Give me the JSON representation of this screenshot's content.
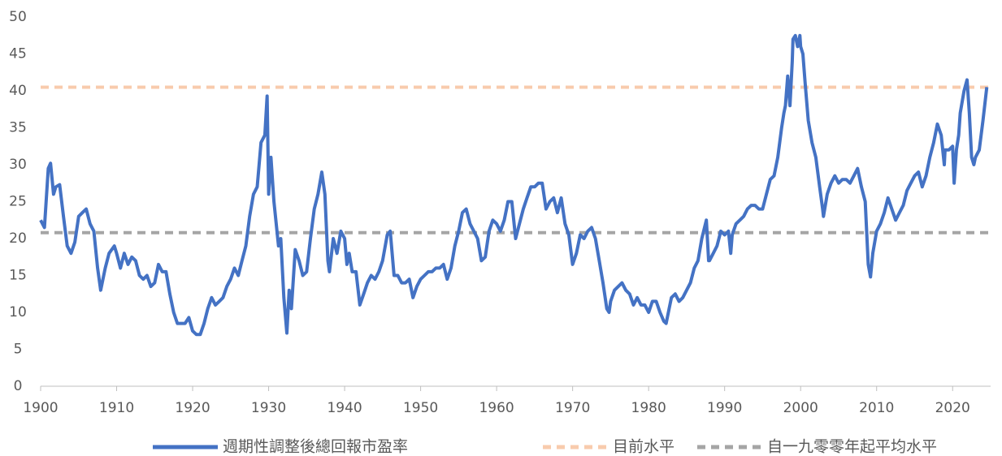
{
  "chart_data": {
    "type": "line",
    "x": [
      1900,
      1900.5,
      1901,
      1901.3,
      1901.7,
      1902,
      1902.5,
      1903,
      1903.5,
      1904,
      1904.5,
      1905,
      1905.5,
      1906,
      1906.5,
      1907,
      1907.5,
      1907.9,
      1908.5,
      1909,
      1909.7,
      1910,
      1910.5,
      1911,
      1911.5,
      1912,
      1912.5,
      1913,
      1913.5,
      1914,
      1914.5,
      1915,
      1915.5,
      1916,
      1916.5,
      1917,
      1917.5,
      1918,
      1918.5,
      1919,
      1919.5,
      1920,
      1920.5,
      1921,
      1921.5,
      1922,
      1922.5,
      1923,
      1923.5,
      1924,
      1924.5,
      1925,
      1925.5,
      1926,
      1926.5,
      1927,
      1927.5,
      1928,
      1928.5,
      1929,
      1929.5,
      1929.8,
      1930,
      1930.3,
      1930.7,
      1931,
      1931.3,
      1931.6,
      1932,
      1932.4,
      1932.7,
      1933,
      1933.5,
      1934,
      1934.5,
      1935,
      1935.5,
      1936,
      1936.5,
      1937,
      1937.4,
      1937.8,
      1938,
      1938.5,
      1939,
      1939.5,
      1940,
      1940.3,
      1940.6,
      1941,
      1941.5,
      1942,
      1942.5,
      1943,
      1943.5,
      1944,
      1944.5,
      1945,
      1945.6,
      1946,
      1946.5,
      1947,
      1947.5,
      1948,
      1948.5,
      1949,
      1949.5,
      1950,
      1950.5,
      1951,
      1951.5,
      1952,
      1952.5,
      1953,
      1953.5,
      1954,
      1954.5,
      1955,
      1955.5,
      1956,
      1956.5,
      1957,
      1957.5,
      1958,
      1958.5,
      1959,
      1959.5,
      1960,
      1960.5,
      1961,
      1961.5,
      1962,
      1962.5,
      1963,
      1963.5,
      1964,
      1964.5,
      1965,
      1965.5,
      1966,
      1966.5,
      1967,
      1967.5,
      1968,
      1968.5,
      1969,
      1969.5,
      1970,
      1970.5,
      1971,
      1971.5,
      1972,
      1972.5,
      1973,
      1973.5,
      1974,
      1974.5,
      1974.8,
      1975,
      1975.5,
      1976,
      1976.5,
      1977,
      1977.5,
      1978,
      1978.5,
      1979,
      1979.5,
      1980,
      1980.5,
      1981,
      1981.5,
      1982,
      1982.3,
      1982.7,
      1983,
      1983.5,
      1984,
      1984.5,
      1985,
      1985.5,
      1986,
      1986.5,
      1987,
      1987.6,
      1987.9,
      1988,
      1988.5,
      1989,
      1989.5,
      1990,
      1990.5,
      1990.8,
      1991,
      1991.5,
      1992,
      1992.5,
      1993,
      1993.5,
      1994,
      1994.5,
      1995,
      1995.5,
      1996,
      1996.5,
      1997,
      1997.5,
      1997.8,
      1998,
      1998.3,
      1998.6,
      1998.9,
      1999,
      1999.3,
      1999.6,
      1999.9,
      2000,
      2000.3,
      2000.6,
      2001,
      2001.5,
      2002,
      2002.5,
      2002.9,
      2003,
      2003.5,
      2004,
      2004.5,
      2005,
      2005.5,
      2006,
      2006.5,
      2007,
      2007.5,
      2008,
      2008.5,
      2008.9,
      2009.2,
      2009.5,
      2010,
      2010.5,
      2011,
      2011.5,
      2012,
      2012.5,
      2013,
      2013.5,
      2014,
      2014.5,
      2015,
      2015.5,
      2016,
      2016.5,
      2017,
      2017.5,
      2018,
      2018.5,
      2018.9,
      2019,
      2019.5,
      2020,
      2020.2,
      2020.5,
      2020.8,
      2021,
      2021.5,
      2021.9,
      2022.2,
      2022.5,
      2022.8,
      2023,
      2023.5,
      2024,
      2024.5
    ],
    "series": [
      {
        "name": "週期性調整後總回報市盈率",
        "color": "#4472c4",
        "values": [
          22.5,
          21.5,
          29.5,
          30.2,
          26,
          27,
          27.3,
          23,
          19,
          18,
          19.5,
          23,
          23.5,
          24,
          22,
          21,
          16,
          13,
          16,
          18,
          19,
          18,
          16,
          18,
          16.5,
          17.5,
          17,
          15,
          14.5,
          15,
          13.5,
          14,
          16.5,
          15.5,
          15.5,
          12.5,
          10,
          8.5,
          8.5,
          8.5,
          9.3,
          7.5,
          7,
          7,
          8.5,
          10.5,
          12,
          11,
          11.5,
          12,
          13.5,
          14.5,
          16,
          15,
          17,
          19,
          23,
          26,
          27,
          33,
          34,
          39.3,
          26,
          31,
          25,
          22,
          19,
          20,
          12,
          7.2,
          13,
          10.5,
          18.5,
          17,
          15,
          15.5,
          20,
          24,
          26,
          29,
          26,
          17,
          15.5,
          20,
          18,
          21,
          20,
          16.5,
          18,
          15.5,
          15.5,
          11,
          12.5,
          14,
          15,
          14.5,
          15.5,
          17,
          20.5,
          21,
          15,
          15,
          14,
          14,
          14.5,
          12,
          13.5,
          14.5,
          15,
          15.5,
          15.5,
          16,
          16,
          16.5,
          14.5,
          16,
          19,
          21,
          23.5,
          24,
          22,
          21,
          20,
          17,
          17.5,
          21,
          22.5,
          22,
          21,
          22.5,
          25,
          25,
          20,
          22,
          24,
          25.5,
          27,
          27,
          27.5,
          27.5,
          24,
          25,
          25.5,
          23.5,
          25.5,
          22,
          20.5,
          16.5,
          18,
          20.5,
          20,
          21,
          21.5,
          20,
          17,
          14,
          10.5,
          10,
          11.5,
          13,
          13.5,
          14,
          13,
          12.5,
          11,
          12,
          11,
          11,
          10,
          11.5,
          11.5,
          10,
          8.8,
          8.5,
          10.5,
          12,
          12.5,
          11.5,
          12,
          13,
          14,
          16,
          17,
          20,
          22.5,
          17,
          17,
          18,
          19,
          21,
          20.5,
          21,
          18,
          20.5,
          22,
          22.5,
          23,
          24,
          24.5,
          24.5,
          24,
          24,
          26,
          28,
          28.5,
          31,
          35,
          37,
          38,
          42,
          38,
          44,
          47,
          47.5,
          46,
          47.5,
          46,
          45,
          41,
          36,
          33,
          31,
          27,
          24,
          23,
          26,
          27.5,
          28.5,
          27.5,
          28,
          28,
          27.5,
          28.5,
          29.5,
          27,
          25,
          16.5,
          14.8,
          18,
          21,
          22,
          23.5,
          25.5,
          24,
          22.5,
          23.5,
          24.5,
          26.5,
          27.5,
          28.5,
          29,
          27,
          28.5,
          31,
          33,
          35.5,
          34,
          30,
          32,
          32,
          32.5,
          27.5,
          32,
          34,
          37,
          40,
          41.5,
          37,
          31,
          30,
          31,
          32,
          36,
          40.5
        ]
      }
    ],
    "reference_lines": [
      {
        "name": "目前水平",
        "color": "#f8cbad",
        "value": 40.5
      },
      {
        "name": "自一九零零年起平均水平",
        "color": "#a5a5a5",
        "value": 20.8
      }
    ],
    "xlim": [
      1900,
      2025
    ],
    "xticks": [
      1900,
      1910,
      1920,
      1930,
      1940,
      1950,
      1960,
      1970,
      1980,
      1990,
      2000,
      2010,
      2020
    ],
    "ylim": [
      0,
      50
    ],
    "yticks": [
      0,
      5,
      10,
      15,
      20,
      25,
      30,
      35,
      40,
      45,
      50
    ]
  }
}
